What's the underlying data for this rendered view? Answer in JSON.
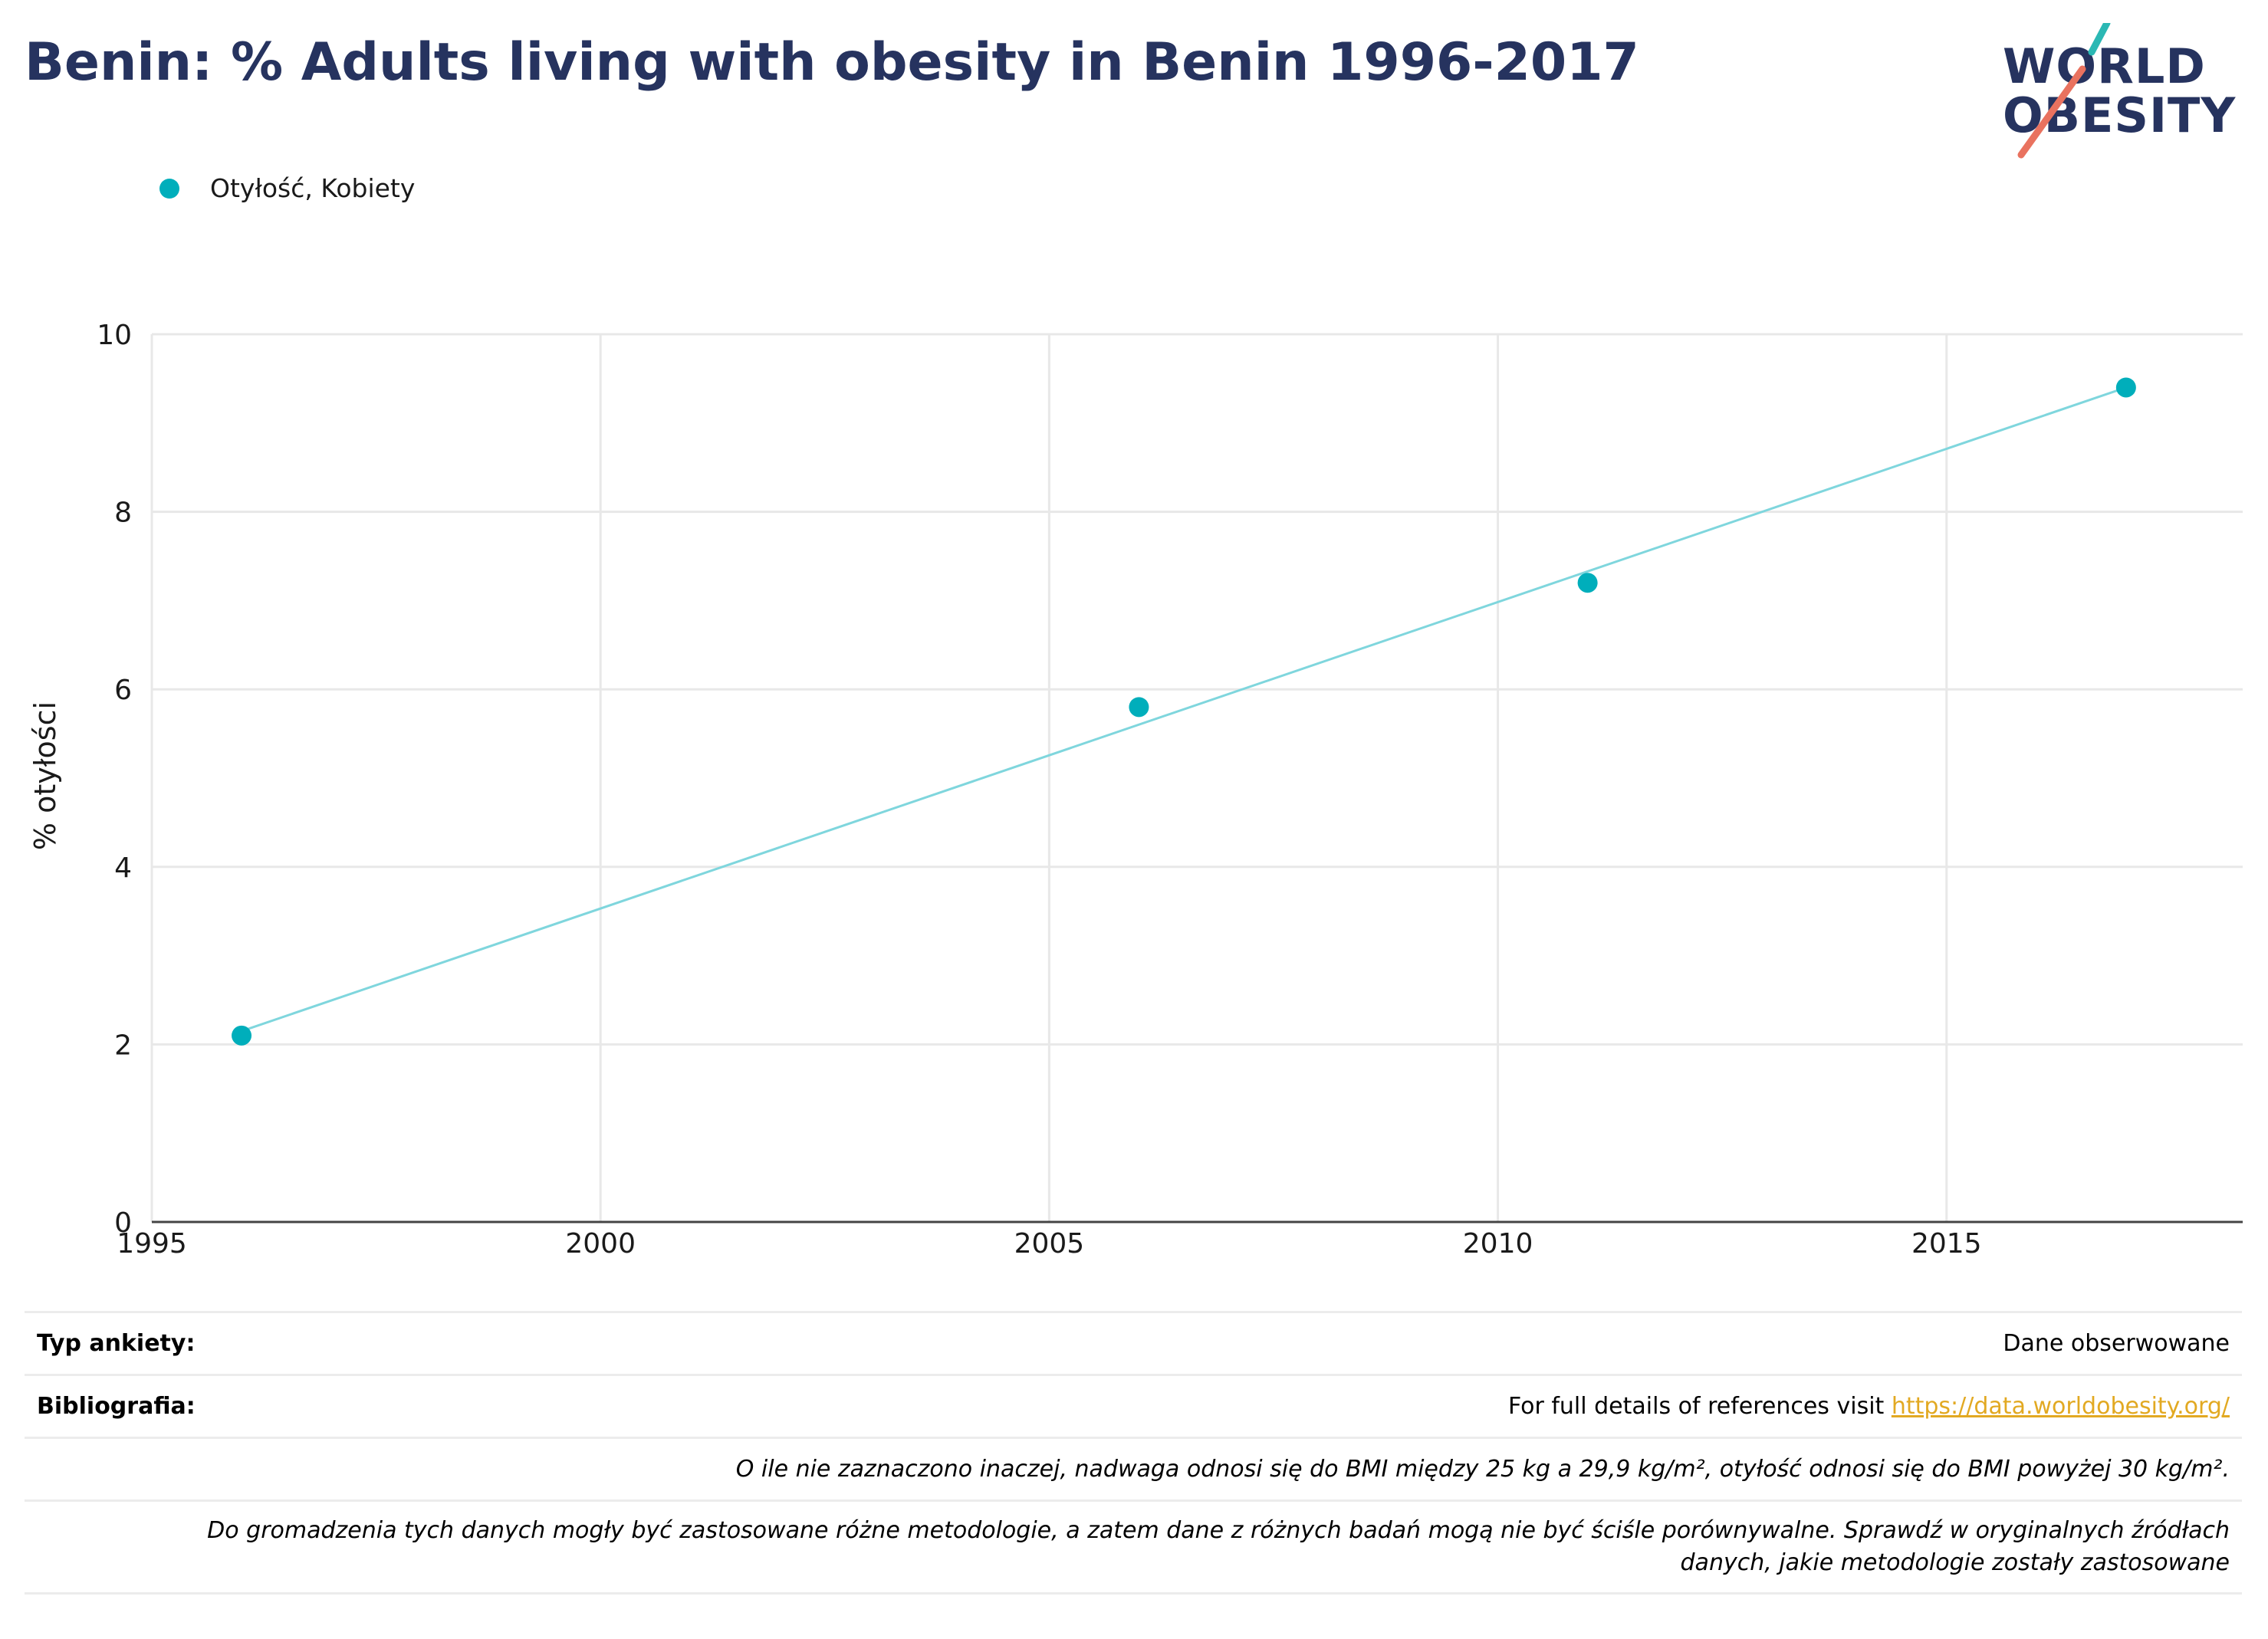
{
  "header": {
    "title": "Benin: % Adults living with obesity in Benin 1996-2017",
    "logo_line1": "WORLD",
    "logo_line2": "OBESITY"
  },
  "colors": {
    "title": "#26335f",
    "series": "#00aebb",
    "trend": "#7fd6dd",
    "logo_teal": "#2bb8b4",
    "logo_coral": "#e9725f",
    "link": "#e2a922"
  },
  "chart_data": {
    "type": "scatter",
    "title": "Benin: % Adults living with obesity in Benin 1996-2017",
    "xlabel": "",
    "ylabel": "% otyłości",
    "xlim": [
      1995,
      2018.3
    ],
    "ylim": [
      0,
      10
    ],
    "x_ticks": [
      1995,
      2000,
      2005,
      2010,
      2015
    ],
    "y_ticks": [
      0,
      2,
      4,
      6,
      8,
      10
    ],
    "grid": true,
    "legend_position": "top-left",
    "series": [
      {
        "name": "Otyłość, Kobiety",
        "color": "#00aebb",
        "points": [
          {
            "x": 1996,
            "y": 2.1
          },
          {
            "x": 2006,
            "y": 5.8
          },
          {
            "x": 2011,
            "y": 7.2
          },
          {
            "x": 2017,
            "y": 9.4
          }
        ]
      }
    ],
    "trendline": {
      "color": "#7fd6dd",
      "start": {
        "x": 1996,
        "y": 2.15
      },
      "end": {
        "x": 2017,
        "y": 9.4
      }
    }
  },
  "info": {
    "survey_type_label": "Typ ankiety:",
    "survey_type_value": "Dane obserwowane",
    "bibliography_label": "Bibliografia:",
    "bibliography_text": "For full details of references visit ",
    "bibliography_link": "https://data.worldobesity.org/",
    "note1": "O ile nie zaznaczono inaczej, nadwaga odnosi się do BMI między 25 kg a 29,9 kg/m², otyłość odnosi się do BMI powyżej 30 kg/m².",
    "note2_line1": "Do gromadzenia tych danych mogły być zastosowane różne metodologie, a zatem dane z różnych badań mogą nie być ściśle porównywalne. Sprawdź w oryginalnych źródłach",
    "note2_line2": "danych, jakie metodologie zostały zastosowane"
  }
}
